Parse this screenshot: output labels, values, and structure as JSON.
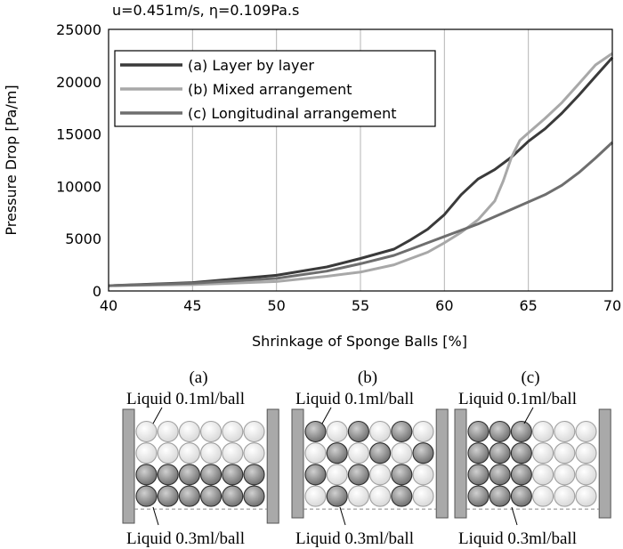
{
  "colors": {
    "series_a": "#3a3a3a",
    "series_b": "#a8a8a8",
    "series_c": "#6e6e6e",
    "ball_light_fill": "#efefef",
    "ball_dark_fill": "#8c8c8c",
    "plate": "#a9a9a9"
  },
  "chart_data": {
    "type": "line",
    "title": "u=0.451m/s, η=0.109Pa.s",
    "xlabel": "Shrinkage of Sponge Balls [%]",
    "ylabel": "Pressure Drop [Pa/m]",
    "xlim": [
      40,
      70
    ],
    "ylim": [
      0,
      25000
    ],
    "xticks": [
      40,
      45,
      50,
      55,
      60,
      65,
      70
    ],
    "yticks": [
      0,
      5000,
      10000,
      15000,
      20000,
      25000
    ],
    "grid": {
      "vertical": true,
      "horizontal": false
    },
    "legend_position": "top-left",
    "series": [
      {
        "name": "(a) Layer by layer",
        "x": [
          40,
          45,
          50,
          53,
          55,
          57,
          58,
          59,
          60,
          61,
          62,
          63,
          64,
          65,
          66,
          67,
          68,
          69,
          70
        ],
        "y": [
          500,
          800,
          1500,
          2300,
          3100,
          4000,
          4900,
          5900,
          7300,
          9200,
          10700,
          11600,
          12800,
          14300,
          15500,
          17000,
          18700,
          20500,
          22300
        ]
      },
      {
        "name": "(b) Mixed arrangement",
        "x": [
          40,
          45,
          50,
          53,
          55,
          57,
          58,
          59,
          60,
          61,
          62,
          63,
          63.5,
          64,
          64.5,
          65,
          66,
          67,
          68,
          69,
          70
        ],
        "y": [
          500,
          600,
          900,
          1400,
          1800,
          2500,
          3100,
          3700,
          4600,
          5600,
          6800,
          8600,
          10500,
          12800,
          14400,
          15100,
          16500,
          18000,
          19800,
          21600,
          22700
        ]
      },
      {
        "name": "(c) Longitudinal arrangement",
        "x": [
          40,
          45,
          50,
          53,
          55,
          57,
          58,
          59,
          60,
          61,
          62,
          63,
          64,
          65,
          66,
          67,
          68,
          69,
          70
        ],
        "y": [
          500,
          750,
          1200,
          1900,
          2600,
          3400,
          4000,
          4600,
          5200,
          5800,
          6400,
          7100,
          7800,
          8500,
          9200,
          10100,
          11300,
          12700,
          14200
        ]
      }
    ]
  },
  "diagram": {
    "panels": [
      {
        "id": "a",
        "label": "(a)",
        "top_label": "Liquid 0.1ml/ball",
        "bottom_label": "Liquid 0.3ml/ball",
        "rows": [
          [
            0,
            0,
            0,
            0,
            0,
            0
          ],
          [
            0,
            0,
            0,
            0,
            0,
            0
          ],
          [
            1,
            1,
            1,
            1,
            1,
            1
          ],
          [
            1,
            1,
            1,
            1,
            1,
            1
          ]
        ]
      },
      {
        "id": "b",
        "label": "(b)",
        "top_label": "Liquid 0.1ml/ball",
        "bottom_label": "Liquid 0.3ml/ball",
        "rows": [
          [
            1,
            0,
            1,
            0,
            1,
            0
          ],
          [
            0,
            1,
            0,
            1,
            0,
            1
          ],
          [
            1,
            0,
            1,
            0,
            1,
            0
          ],
          [
            0,
            1,
            0,
            0,
            1,
            0
          ]
        ]
      },
      {
        "id": "c",
        "label": "(c)",
        "top_label": "Liquid 0.1ml/ball",
        "bottom_label": "Liquid 0.3ml/ball",
        "rows": [
          [
            1,
            1,
            1,
            0,
            0,
            0
          ],
          [
            1,
            1,
            1,
            0,
            0,
            0
          ],
          [
            1,
            1,
            1,
            0,
            0,
            0
          ],
          [
            1,
            1,
            1,
            0,
            0,
            0
          ]
        ]
      }
    ]
  }
}
